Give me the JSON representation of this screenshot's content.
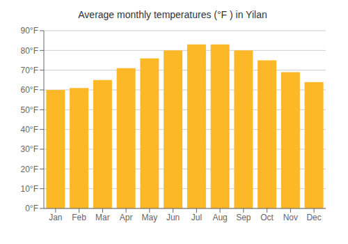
{
  "chart_data": {
    "type": "bar",
    "title": "Average monthly temperatures (°F ) in Yilan",
    "categories": [
      "Jan",
      "Feb",
      "Mar",
      "Apr",
      "May",
      "Jun",
      "Jul",
      "Aug",
      "Sep",
      "Oct",
      "Nov",
      "Dec"
    ],
    "values": [
      60,
      61,
      65,
      71,
      76,
      80,
      83,
      83,
      80,
      75,
      69,
      64
    ],
    "color": "#FDB827",
    "ylim": [
      0,
      90
    ],
    "yticks": [
      {
        "value": 0,
        "label": "0°F"
      },
      {
        "value": 10,
        "label": "10°F"
      },
      {
        "value": 20,
        "label": "20°F"
      },
      {
        "value": 30,
        "label": "30°F"
      },
      {
        "value": 40,
        "label": "40°F"
      },
      {
        "value": 50,
        "label": "50°F"
      },
      {
        "value": 60,
        "label": "60°F"
      },
      {
        "value": 70,
        "label": "70°F"
      },
      {
        "value": 80,
        "label": "80°F"
      },
      {
        "value": 90,
        "label": "90°F"
      }
    ],
    "grid": true
  }
}
